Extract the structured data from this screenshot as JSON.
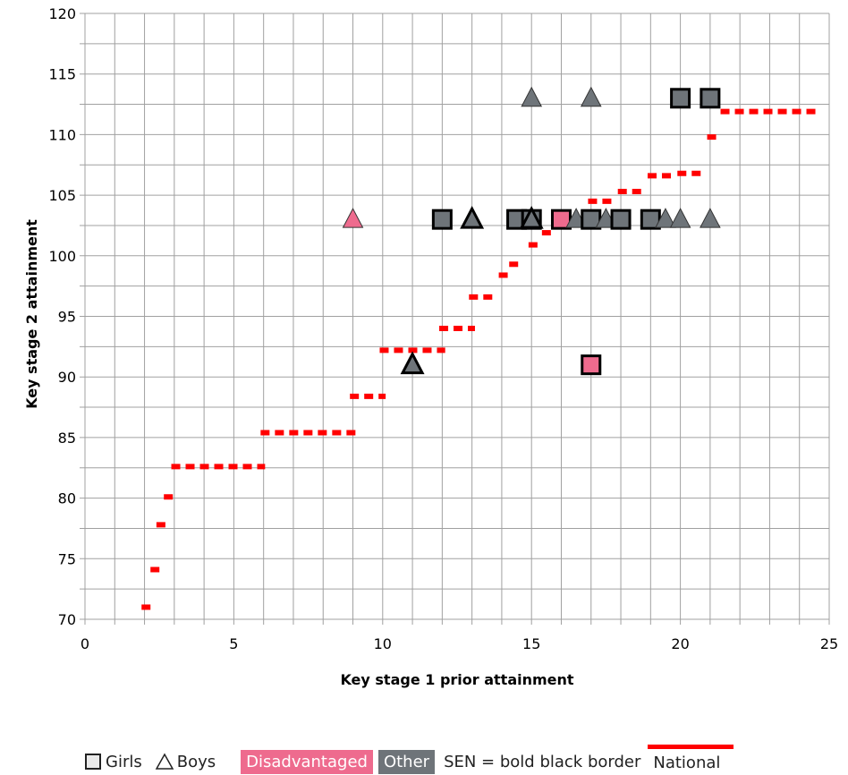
{
  "chart_data": {
    "type": "scatter",
    "title": "",
    "xlabel": "Key stage 1 prior attainment",
    "ylabel": "Key stage 2 attainment",
    "xlim": [
      0,
      25
    ],
    "ylim": [
      70,
      120
    ],
    "x_ticks": [
      0,
      5,
      10,
      15,
      20,
      25
    ],
    "y_ticks": [
      70,
      75,
      80,
      85,
      90,
      95,
      100,
      105,
      110,
      115,
      120
    ],
    "grid": true,
    "colors": {
      "disadvantaged": "#ee6b8e",
      "other": "#6e7479",
      "national": "#ff0000",
      "sen_border": "#000000",
      "grid": "#a0a0a0"
    },
    "pupils": [
      {
        "x": 9,
        "y": 103,
        "gender": "boy",
        "group": "disadvantaged",
        "sen": false
      },
      {
        "x": 11,
        "y": 91,
        "gender": "boy",
        "group": "other",
        "sen": true
      },
      {
        "x": 12,
        "y": 103,
        "gender": "girl",
        "group": "other",
        "sen": true
      },
      {
        "x": 13,
        "y": 103,
        "gender": "boy",
        "group": "other",
        "sen": true
      },
      {
        "x": 14.5,
        "y": 103,
        "gender": "girl",
        "group": "other",
        "sen": true
      },
      {
        "x": 15,
        "y": 103,
        "gender": "girl",
        "group": "other",
        "sen": true
      },
      {
        "x": 15,
        "y": 103,
        "gender": "boy",
        "group": "other",
        "sen": true
      },
      {
        "x": 15,
        "y": 113,
        "gender": "boy",
        "group": "other",
        "sen": false
      },
      {
        "x": 16,
        "y": 103,
        "gender": "girl",
        "group": "disadvantaged",
        "sen": true
      },
      {
        "x": 16.5,
        "y": 103,
        "gender": "boy",
        "group": "other",
        "sen": false
      },
      {
        "x": 17,
        "y": 103,
        "gender": "girl",
        "group": "other",
        "sen": true
      },
      {
        "x": 17,
        "y": 113,
        "gender": "boy",
        "group": "other",
        "sen": false
      },
      {
        "x": 17,
        "y": 91,
        "gender": "girl",
        "group": "disadvantaged",
        "sen": true
      },
      {
        "x": 17.5,
        "y": 103,
        "gender": "boy",
        "group": "other",
        "sen": false
      },
      {
        "x": 18,
        "y": 103,
        "gender": "girl",
        "group": "other",
        "sen": true
      },
      {
        "x": 19,
        "y": 103,
        "gender": "girl",
        "group": "other",
        "sen": true
      },
      {
        "x": 19.5,
        "y": 103,
        "gender": "boy",
        "group": "other",
        "sen": false
      },
      {
        "x": 20,
        "y": 103,
        "gender": "boy",
        "group": "other",
        "sen": false
      },
      {
        "x": 20,
        "y": 113,
        "gender": "girl",
        "group": "other",
        "sen": true
      },
      {
        "x": 21,
        "y": 113,
        "gender": "girl",
        "group": "other",
        "sen": true
      },
      {
        "x": 21,
        "y": 103,
        "gender": "boy",
        "group": "other",
        "sen": false
      }
    ],
    "national": [
      {
        "x0": 1.9,
        "x1": 2.35,
        "y": 71
      },
      {
        "x0": 2.2,
        "x1": 2.6,
        "y": 74.1
      },
      {
        "x0": 2.4,
        "x1": 2.85,
        "y": 77.8
      },
      {
        "x0": 2.65,
        "x1": 3.05,
        "y": 80.1
      },
      {
        "x0": 2.9,
        "x1": 6.05,
        "y": 82.6
      },
      {
        "x0": 5.9,
        "x1": 9.1,
        "y": 85.4
      },
      {
        "x0": 8.9,
        "x1": 10.1,
        "y": 88.4
      },
      {
        "x0": 9.9,
        "x1": 12.1,
        "y": 92.2
      },
      {
        "x0": 11.9,
        "x1": 13.1,
        "y": 94
      },
      {
        "x0": 12.9,
        "x1": 13.7,
        "y": 96.6
      },
      {
        "x0": 13.9,
        "x1": 14.2,
        "y": 98.4
      },
      {
        "x0": 14.25,
        "x1": 14.55,
        "y": 99.3
      },
      {
        "x0": 14.9,
        "x1": 15.2,
        "y": 100.9
      },
      {
        "x0": 15.35,
        "x1": 15.65,
        "y": 101.9
      },
      {
        "x0": 16.9,
        "x1": 17.7,
        "y": 104.5
      },
      {
        "x0": 17.9,
        "x1": 18.7,
        "y": 105.3
      },
      {
        "x0": 18.9,
        "x1": 19.7,
        "y": 106.6
      },
      {
        "x0": 19.9,
        "x1": 20.7,
        "y": 106.8
      },
      {
        "x0": 20.9,
        "x1": 21.2,
        "y": 109.8
      },
      {
        "x0": 21.35,
        "x1": 24.7,
        "y": 111.9
      }
    ]
  },
  "legend": {
    "girls": "Girls",
    "boys": "Boys",
    "disadvantaged": "Disadvantaged",
    "other": "Other",
    "sen": "SEN = bold black border",
    "national": "National"
  }
}
